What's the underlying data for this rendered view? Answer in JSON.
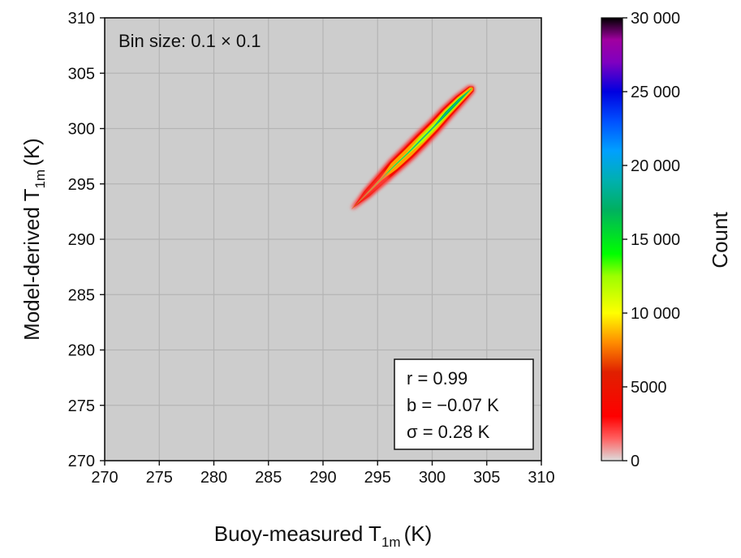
{
  "chart_data": {
    "type": "heatmap",
    "subtype": "2d-histogram density",
    "xlabel": {
      "main": "Buoy-measured T",
      "sub": "1m",
      "unit": "(K)"
    },
    "ylabel": {
      "main": "Model-derived T",
      "sub": "1m",
      "unit": "(K)"
    },
    "xlim": [
      270,
      310
    ],
    "ylim": [
      270,
      310
    ],
    "xticks": [
      270,
      275,
      280,
      285,
      290,
      295,
      300,
      305,
      310
    ],
    "yticks": [
      270,
      275,
      280,
      285,
      290,
      295,
      300,
      305,
      310
    ],
    "xtick_labels": [
      "270",
      "275",
      "280",
      "285",
      "290",
      "295",
      "300",
      "305",
      "310"
    ],
    "ytick_labels": [
      "270",
      "275",
      "280",
      "285",
      "290",
      "295",
      "300",
      "305",
      "310"
    ],
    "grid": true,
    "plot_background": "#cdcdcd",
    "annotation": "Bin size: 0.1 × 0.1",
    "stats": {
      "lines": [
        "r = 0.99",
        "b = −0.07 K",
        "σ = 0.28 K"
      ]
    },
    "colorbar": {
      "label": "Count",
      "range": [
        0,
        30000
      ],
      "ticks": [
        0,
        5000,
        10000,
        15000,
        20000,
        25000,
        30000
      ],
      "tick_labels": [
        "0",
        "5000",
        "10 000",
        "15 000",
        "20 000",
        "25 000",
        "30 000"
      ],
      "colors": [
        {
          "value": 0,
          "color": "#dcdcdc"
        },
        {
          "value": 1500,
          "color": "#ff6060"
        },
        {
          "value": 3000,
          "color": "#ff0000"
        },
        {
          "value": 6000,
          "color": "#e02000"
        },
        {
          "value": 8000,
          "color": "#ff8c00"
        },
        {
          "value": 10000,
          "color": "#ffff00"
        },
        {
          "value": 12500,
          "color": "#9cff00"
        },
        {
          "value": 14000,
          "color": "#00ff00"
        },
        {
          "value": 17000,
          "color": "#00b060"
        },
        {
          "value": 19000,
          "color": "#00b0b0"
        },
        {
          "value": 21000,
          "color": "#00a0ff"
        },
        {
          "value": 23000,
          "color": "#0050ff"
        },
        {
          "value": 25000,
          "color": "#0000e0"
        },
        {
          "value": 27000,
          "color": "#8000c0"
        },
        {
          "value": 28500,
          "color": "#a000a0"
        },
        {
          "value": 30000,
          "color": "#000000"
        }
      ]
    },
    "density_ridge": [
      {
        "x": 292.8,
        "y": 292.9,
        "half_width": 0.25,
        "level": 0.05
      },
      {
        "x": 294.0,
        "y": 294.1,
        "half_width": 0.45,
        "level": 0.15
      },
      {
        "x": 295.3,
        "y": 295.4,
        "half_width": 0.6,
        "level": 0.25
      },
      {
        "x": 296.5,
        "y": 296.6,
        "half_width": 0.75,
        "level": 0.3
      },
      {
        "x": 297.8,
        "y": 297.8,
        "half_width": 0.8,
        "level": 0.35
      },
      {
        "x": 299.0,
        "y": 299.0,
        "half_width": 0.8,
        "level": 0.42
      },
      {
        "x": 300.2,
        "y": 300.2,
        "half_width": 0.75,
        "level": 0.5
      },
      {
        "x": 301.3,
        "y": 301.4,
        "half_width": 0.7,
        "level": 0.6
      },
      {
        "x": 302.5,
        "y": 302.6,
        "half_width": 0.6,
        "level": 0.58
      },
      {
        "x": 303.6,
        "y": 303.6,
        "half_width": 0.4,
        "level": 0.3
      }
    ]
  }
}
